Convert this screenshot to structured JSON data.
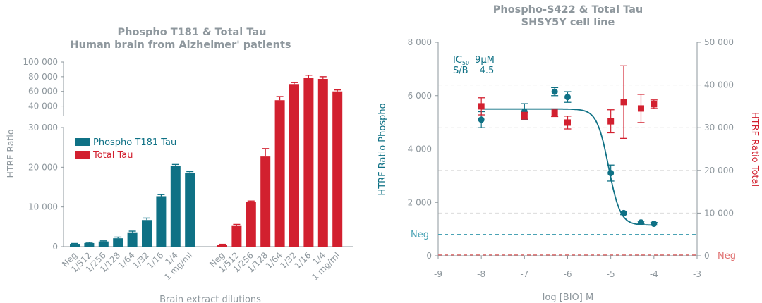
{
  "chart_data": [
    {
      "type": "bar",
      "title": "Phospho T181 & Total Tau",
      "subtitle": "Human brain from Alzheimer' patients",
      "xlabel": "Brain extract dilutions",
      "ylabel": "HTRF Ratio",
      "y_axis_break": true,
      "ylim_lower": [
        0,
        30000
      ],
      "ylim_upper": [
        30000,
        100000
      ],
      "yticks_lower": [
        "0",
        "10 000",
        "20 000",
        "30 000"
      ],
      "yticks_upper": [
        "40 000",
        "60 000",
        "80 000",
        "100 000"
      ],
      "categories": [
        "Neg",
        "1/512",
        "1/256",
        "1/128",
        "1/64",
        "1/32",
        "1/16",
        "1/4",
        "1 mg/ml"
      ],
      "legend_position": "middle-left",
      "series": [
        {
          "name": "Phospho T181 Tau",
          "color": "#0f7185",
          "values": [
            700,
            900,
            1300,
            2100,
            3600,
            6700,
            12700,
            20300,
            18500
          ],
          "errors": [
            100,
            150,
            150,
            300,
            300,
            500,
            400,
            400,
            400
          ]
        },
        {
          "name": "Total Tau",
          "color": "#d2202f",
          "values": [
            500,
            5200,
            11200,
            22700,
            48000,
            70000,
            78000,
            77000,
            60000
          ],
          "errors": [
            100,
            400,
            300,
            2000,
            5000,
            2000,
            4000,
            3000,
            2000
          ]
        }
      ]
    },
    {
      "type": "scatter",
      "title": "Phospho-S422 & Total Tau",
      "subtitle": "SHSY5Y cell line",
      "xlabel": "log [BIO] M",
      "ylabel_left": "HTRF Ratio Phospho",
      "ylabel_right": "HTRF Ratio Total",
      "xlim": [
        -9,
        -3
      ],
      "xticks": [
        "-9",
        "-8",
        "-7",
        "-6",
        "-5",
        "-4",
        "-3"
      ],
      "ylim_left": [
        0,
        8000
      ],
      "yticks_left": [
        "0",
        "2 000",
        "4 000",
        "6 000",
        "8 000"
      ],
      "ylim_right": [
        0,
        50000
      ],
      "yticks_right": [
        "0",
        "10 000",
        "20 000",
        "30 000",
        "40 000",
        "50 000"
      ],
      "grid": "dashed horizontal",
      "annotation": {
        "ic_label": "IC",
        "ic_sub": "50",
        "ic_value": "9µM",
        "sb_label": "S/B",
        "sb_value": "4.5"
      },
      "neg_left": {
        "label": "Neg",
        "value": 800,
        "color": "#4aa3b5"
      },
      "neg_right": {
        "label": "Neg",
        "value": 200,
        "color": "#e07070"
      },
      "fit_curve": {
        "top": 5500,
        "bottom": 1150,
        "logIC50": -5.05,
        "hill": 3.2,
        "color": "#0f7185"
      },
      "series": [
        {
          "name": "Phospho",
          "axis": "left",
          "marker": "circle",
          "color": "#0f7185",
          "x": [
            -8,
            -7,
            -6.3,
            -6,
            -5,
            -4.7,
            -4.3,
            -4
          ],
          "y": [
            5100,
            5400,
            6150,
            5950,
            3100,
            1600,
            1250,
            1200
          ],
          "errors": [
            300,
            300,
            150,
            200,
            300,
            60,
            50,
            50
          ]
        },
        {
          "name": "Total",
          "axis": "right",
          "marker": "square",
          "color": "#d2202f",
          "x": [
            -8,
            -7,
            -6.3,
            -6,
            -5,
            -4.7,
            -4.3,
            -4
          ],
          "y": [
            35000,
            32800,
            33500,
            31200,
            31500,
            36000,
            34500,
            35500
          ],
          "errors": [
            2000,
            800,
            900,
            1500,
            2700,
            8500,
            3300,
            1000
          ]
        }
      ]
    }
  ]
}
